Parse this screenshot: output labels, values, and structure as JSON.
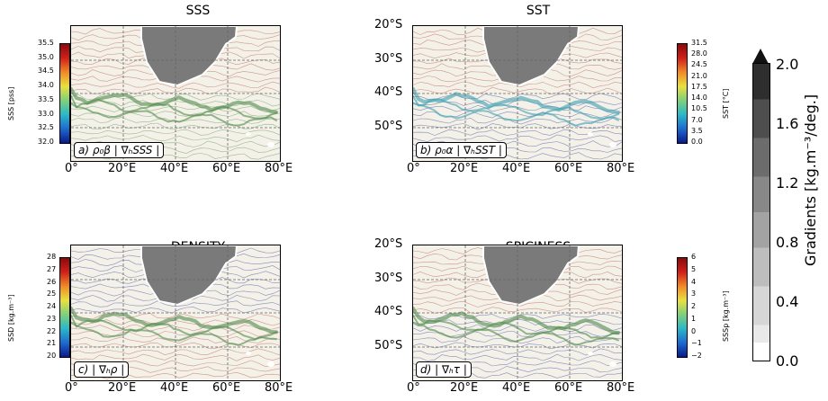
{
  "colors": {
    "land": "#7a7a7a",
    "coast": "#ffffff",
    "jet_green": "#4f8a4a",
    "jet_blue": "#3aa0b0",
    "contour_red": "#b04a3a",
    "contour_blue": "#2a3a9a",
    "grid": "#666666"
  },
  "panels": [
    {
      "id": "sss",
      "title": "SSS",
      "label": "a) ρ₀β | ∇ₕSSS |",
      "cbar_label": "SSS [pss]",
      "cbar_ticks": [
        "35.5",
        "35.0",
        "34.5",
        "34.0",
        "33.5",
        "33.0",
        "32.5",
        "32.0"
      ],
      "show_lat": false,
      "lon_ticks": [
        "0°",
        "20°E",
        "40°E",
        "60°E",
        "80°E"
      ]
    },
    {
      "id": "sst",
      "title": "SST",
      "label": "b) ρ₀α | ∇ₕSST |",
      "cbar_label": "SST [°C]",
      "cbar_ticks": [
        "31.5",
        "28.0",
        "24.5",
        "21.0",
        "17.5",
        "14.0",
        "10.5",
        "7.0",
        "3.5",
        "0.0"
      ],
      "show_lat": true,
      "lat_ticks": [
        "20°S",
        "30°S",
        "40°S",
        "50°S"
      ],
      "lon_ticks": [
        "0°",
        "20°E",
        "40°E",
        "60°E",
        "80°E"
      ]
    },
    {
      "id": "density",
      "title": "DENSITY",
      "label": "c) | ∇ₕρ |",
      "cbar_label": "SSD [kg.m⁻³]",
      "cbar_ticks": [
        "28",
        "27",
        "26",
        "25",
        "24",
        "23",
        "22",
        "21",
        "20"
      ],
      "show_lat": false,
      "lon_ticks": [
        "0°",
        "20°E",
        "40°E",
        "60°E",
        "80°E"
      ]
    },
    {
      "id": "spiciness",
      "title": "SPICINESS",
      "label": "d) | ∇ₕτ |",
      "cbar_label": "SSSp [kg.m⁻³]",
      "cbar_ticks": [
        "6",
        "5",
        "4",
        "3",
        "2",
        "1",
        "0",
        "−1",
        "−2"
      ],
      "show_lat": true,
      "lat_ticks": [
        "20°S",
        "30°S",
        "40°S",
        "50°S"
      ],
      "lon_ticks": [
        "0°",
        "20°E",
        "40°E",
        "60°E",
        "80°E"
      ]
    }
  ],
  "colorbar": {
    "label": "Gradients [kg.m⁻³/deg.]",
    "ticks": [
      "2.0",
      "1.6",
      "1.2",
      "0.8",
      "0.4",
      "0.0"
    ]
  }
}
